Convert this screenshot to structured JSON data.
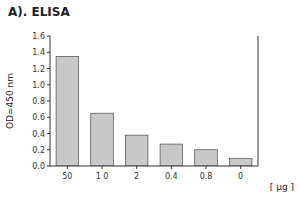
{
  "chart_data": {
    "type": "bar",
    "title": "A). ELISA",
    "categories": [
      "50",
      "1 0",
      "2",
      "0.4",
      "0.8",
      "0"
    ],
    "values": [
      1.35,
      0.65,
      0.38,
      0.27,
      0.2,
      0.09
    ],
    "color": "#c8c8c8",
    "ylabel": "OD=450 nm",
    "xlabel": "[ μg ]",
    "ylim": [
      0.0,
      1.6
    ],
    "yticks": [
      {
        "value": 0.0,
        "label": "0.0"
      },
      0.2,
      0.4,
      0.6,
      0.8,
      {
        "value": 1.0,
        "label": "1.0"
      },
      1.2,
      1.4,
      1.6
    ],
    "grid": false
  }
}
